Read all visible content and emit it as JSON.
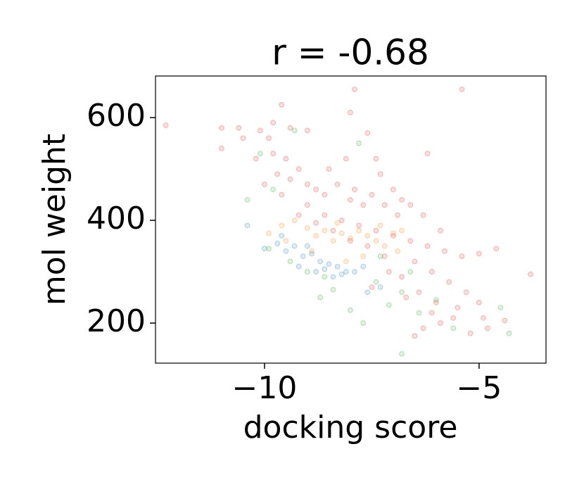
{
  "chart_data": {
    "type": "scatter",
    "title": "r = -0.68",
    "x_label": "docking score",
    "y_label": "mol weight",
    "xlim": [
      -12.54,
      -3.44
    ],
    "ylim": [
      122,
      681
    ],
    "xticks": [
      {
        "value": -10,
        "label": "−10"
      },
      {
        "value": -5,
        "label": "−5"
      }
    ],
    "yticks": [
      200,
      400,
      600
    ],
    "grid": false,
    "opacity": 0.15,
    "series": [
      {
        "color": "#d62728",
        "x": [
          -12.3,
          -11.0,
          -11.0,
          -10.6,
          -10.5,
          -10.1,
          -9.8,
          -9.6,
          -9.4,
          -9.0,
          -9.8,
          -9.5,
          -9.2,
          -9.7,
          -9.4,
          -9.0,
          -8.8,
          -8.6,
          -8.3,
          -8.0,
          -7.9,
          -7.7,
          -7.5,
          -7.2,
          -7.0,
          -6.8,
          -6.6,
          -7.9,
          -5.4,
          -8.0,
          -7.6,
          -6.2,
          -7.4,
          -9.0,
          -8.6,
          -8.2,
          -7.8,
          -7.4,
          -7.0,
          -6.6,
          -6.2,
          -5.8,
          -5.4,
          -5.0,
          -4.6,
          -3.8,
          -6.5,
          -6.1,
          -5.7,
          -5.3,
          -5.0,
          -5.6,
          -5.9,
          -6.3,
          -6.5,
          -5.2,
          -4.8,
          -4.4,
          -6.0,
          -6.4,
          -6.8,
          -7.2,
          -7.6,
          -8.0,
          -8.4,
          -8.8,
          -9.2,
          -9.6,
          -10.0,
          -10.2,
          -9.9,
          -8.5,
          -8.1,
          -7.3,
          -6.9,
          -6.3,
          -5.9,
          -7.1,
          -7.5,
          -6.7,
          -6.1,
          -5.5,
          -4.9
        ],
        "y": [
          585,
          580,
          540,
          580,
          560,
          575,
          590,
          625,
          580,
          575,
          530,
          520,
          500,
          490,
          480,
          470,
          460,
          450,
          470,
          440,
          460,
          430,
          450,
          430,
          460,
          440,
          430,
          655,
          655,
          610,
          570,
          530,
          520,
          430,
          410,
          400,
          390,
          380,
          370,
          360,
          350,
          340,
          330,
          335,
          345,
          295,
          320,
          300,
          280,
          260,
          240,
          210,
          200,
          190,
          175,
          180,
          190,
          205,
          240,
          260,
          290,
          330,
          350,
          360,
          380,
          395,
          410,
          450,
          470,
          520,
          560,
          500,
          520,
          490,
          410,
          410,
          380,
          300,
          270,
          250,
          220,
          230,
          210
        ]
      },
      {
        "color": "#ff7f0e",
        "x": [
          -9.9,
          -9.6,
          -9.3,
          -9.0,
          -8.8,
          -8.6,
          -8.4,
          -8.2,
          -8.0,
          -7.8,
          -7.6,
          -7.4,
          -7.2,
          -7.0,
          -6.9,
          -8.3,
          -8.9,
          -7.7,
          -9.5,
          -8.1,
          -7.3,
          -6.8
        ],
        "y": [
          375,
          390,
          400,
          385,
          370,
          380,
          360,
          375,
          365,
          380,
          370,
          360,
          350,
          375,
          340,
          395,
          340,
          330,
          360,
          320,
          390,
          380
        ]
      },
      {
        "color": "#2ca02c",
        "x": [
          -10.1,
          -9.8,
          -10.4,
          -9.9,
          -9.4,
          -9.0,
          -8.7,
          -8.4,
          -8.0,
          -7.7,
          -7.4,
          -7.1,
          -6.8,
          -6.4,
          -6.0,
          -5.6,
          -4.3,
          -4.5,
          -6.8,
          -7.8,
          -9.3,
          -8.6,
          -7.3,
          -6.6
        ],
        "y": [
          530,
          460,
          440,
          345,
          320,
          300,
          250,
          265,
          225,
          200,
          280,
          235,
          260,
          220,
          245,
          190,
          180,
          230,
          140,
          550,
          575,
          290,
          330,
          300
        ]
      },
      {
        "color": "#1f77b4",
        "x": [
          -10.4,
          -10.0,
          -9.7,
          -9.5,
          -9.3,
          -9.1,
          -8.9,
          -8.7,
          -8.5,
          -8.3,
          -8.1,
          -7.9,
          -7.7,
          -9.2,
          -8.8,
          -8.6,
          -8.4,
          -8.2,
          -7.6,
          -7.3,
          -9.6,
          -9.0
        ],
        "y": [
          390,
          345,
          355,
          340,
          350,
          330,
          335,
          320,
          315,
          310,
          300,
          300,
          310,
          310,
          300,
          305,
          290,
          295,
          260,
          270,
          370,
          350
        ]
      }
    ]
  }
}
